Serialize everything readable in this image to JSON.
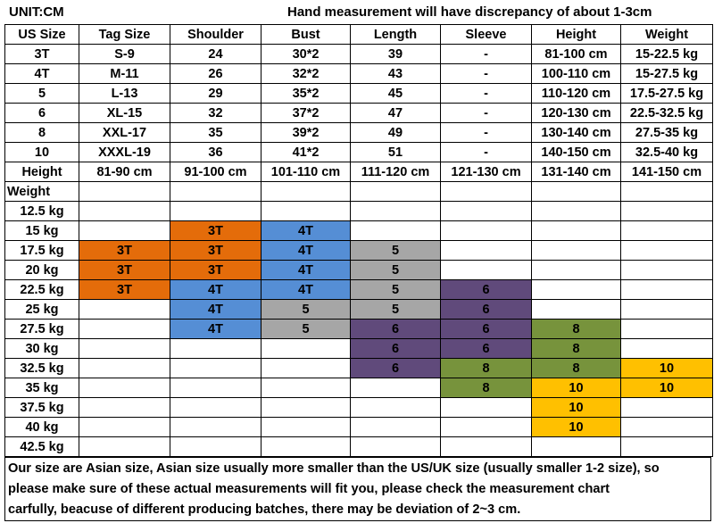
{
  "header": {
    "unit": "UNIT:CM",
    "note": "Hand measurement will have discrepancy of about 1-3cm"
  },
  "size_table": {
    "columns": [
      "US Size",
      "Tag Size",
      "Shoulder",
      "Bust",
      "Length",
      "Sleeve",
      "Height",
      "Weight"
    ],
    "rows": [
      [
        "3T",
        "S-9",
        "24",
        "30*2",
        "39",
        "-",
        "81-100 cm",
        "15-22.5 kg"
      ],
      [
        "4T",
        "M-11",
        "26",
        "32*2",
        "43",
        "-",
        "100-110 cm",
        "15-27.5 kg"
      ],
      [
        "5",
        "L-13",
        "29",
        "35*2",
        "45",
        "-",
        "110-120 cm",
        "17.5-27.5 kg"
      ],
      [
        "6",
        "XL-15",
        "32",
        "37*2",
        "47",
        "-",
        "120-130 cm",
        "22.5-32.5 kg"
      ],
      [
        "8",
        "XXL-17",
        "35",
        "39*2",
        "49",
        "-",
        "130-140 cm",
        "27.5-35 kg"
      ],
      [
        "10",
        "XXXL-19",
        "36",
        "41*2",
        "51",
        "-",
        "140-150 cm",
        "32.5-40 kg"
      ]
    ]
  },
  "fit_grid": {
    "height_label": "Height",
    "heights": [
      "81-90 cm",
      "91-100 cm",
      "101-110 cm",
      "111-120 cm",
      "121-130 cm",
      "131-140 cm",
      "141-150 cm"
    ],
    "weight_label": "Weight",
    "size_colors": {
      "3T": "#e46c0a",
      "4T": "#558ed5",
      "5": "#a6a6a6",
      "6": "#604a7b",
      "8": "#77933c",
      "10": "#ffc000"
    },
    "rows": [
      {
        "weight": "12.5 kg",
        "sizes": [
          null,
          null,
          null,
          null,
          null,
          null,
          null
        ]
      },
      {
        "weight": "15 kg",
        "sizes": [
          null,
          "3T",
          "4T",
          null,
          null,
          null,
          null
        ]
      },
      {
        "weight": "17.5 kg",
        "sizes": [
          "3T",
          "3T",
          "4T",
          "5",
          null,
          null,
          null
        ]
      },
      {
        "weight": "20 kg",
        "sizes": [
          "3T",
          "3T",
          "4T",
          "5",
          null,
          null,
          null
        ]
      },
      {
        "weight": "22.5 kg",
        "sizes": [
          "3T",
          "4T",
          "4T",
          "5",
          "6",
          null,
          null
        ]
      },
      {
        "weight": "25 kg",
        "sizes": [
          null,
          "4T",
          "5",
          "5",
          "6",
          null,
          null
        ]
      },
      {
        "weight": "27.5 kg",
        "sizes": [
          null,
          "4T",
          "5",
          "6",
          "6",
          "8",
          null
        ]
      },
      {
        "weight": "30 kg",
        "sizes": [
          null,
          null,
          null,
          "6",
          "6",
          "8",
          null
        ]
      },
      {
        "weight": "32.5 kg",
        "sizes": [
          null,
          null,
          null,
          "6",
          "8",
          "8",
          "10"
        ]
      },
      {
        "weight": "35 kg",
        "sizes": [
          null,
          null,
          null,
          null,
          "8",
          "10",
          "10"
        ]
      },
      {
        "weight": "37.5 kg",
        "sizes": [
          null,
          null,
          null,
          null,
          null,
          "10",
          null
        ]
      },
      {
        "weight": "40 kg",
        "sizes": [
          null,
          null,
          null,
          null,
          null,
          "10",
          null
        ]
      },
      {
        "weight": "42.5 kg",
        "sizes": [
          null,
          null,
          null,
          null,
          null,
          null,
          null
        ]
      }
    ]
  },
  "footer": {
    "lines": [
      "Our size are Asian size, Asian size usually more smaller than the US/UK size (usually smaller 1-2 size), so",
      "please make sure of these actual measurements will fit you, please check the measurement chart",
      "carfully, beacuse of different producing batches, there may be deviation of 2~3 cm."
    ]
  }
}
